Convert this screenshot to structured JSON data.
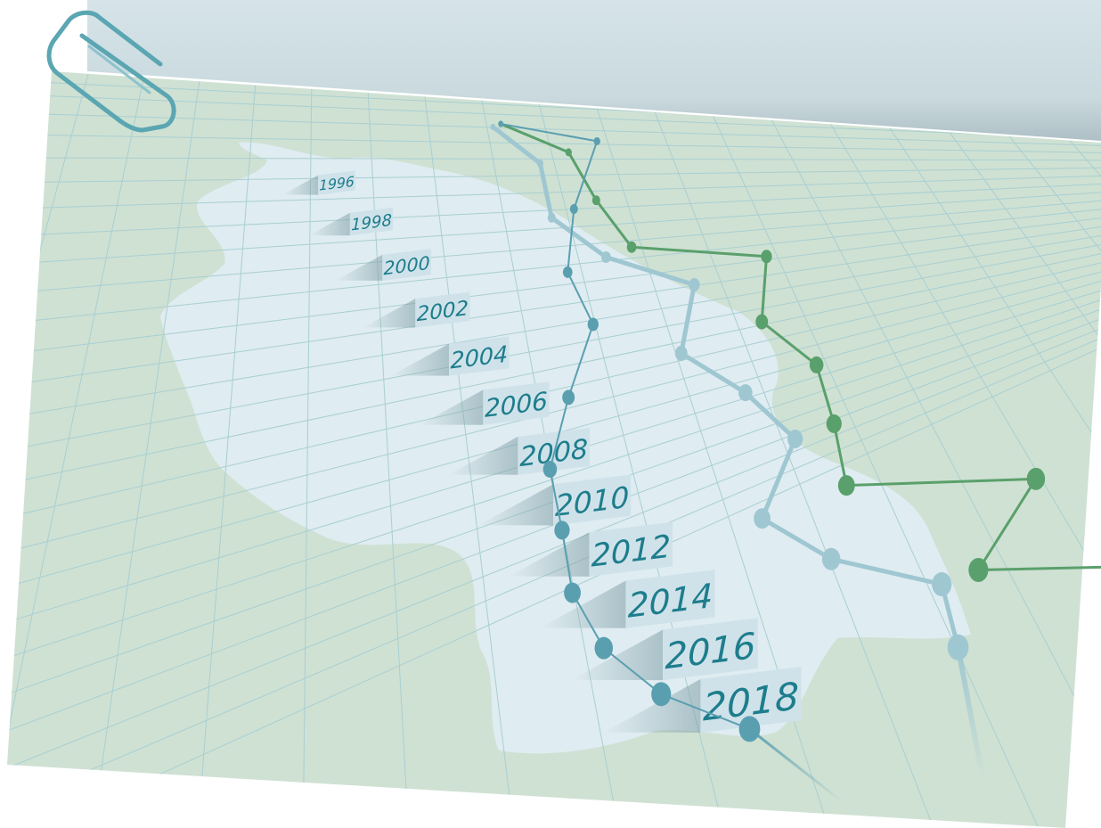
{
  "colors": {
    "background": "#ffffff",
    "sheet_top": "#d4e3e8",
    "sheet_top_shadow": "#b3c6cd",
    "ground": "#cfe1d3",
    "grid": "#a9cfd2",
    "map": "#dfecf1",
    "label_card": "#cfe2ea",
    "label_text": "#1d7d8c",
    "series_green": "#5aa06c",
    "series_teal": "#5a9fb0",
    "series_light": "#9fc7d2",
    "paperclip": "#5aa6b2"
  },
  "decor": {
    "paperclip_icon": "paperclip-icon",
    "map_shape": "country-outline"
  },
  "chart_data": {
    "type": "line",
    "categories": [
      "1996",
      "1998",
      "2000",
      "2002",
      "2004",
      "2006",
      "2008",
      "2010",
      "2012",
      "2014",
      "2016",
      "2018"
    ],
    "title": "",
    "xlabel": "",
    "ylabel": "",
    "legend": "none",
    "grid": true,
    "series": [
      {
        "values": [
          0.69,
          0.7,
          0.64,
          0.66,
          0.72,
          0.64,
          0.66,
          0.66,
          0.58,
          0.6,
          0.65,
          0.62
        ]
      },
      {
        "values": [
          0.71,
          0.76,
          0.72,
          0.7,
          0.82,
          0.74,
          0.74,
          0.7,
          0.66,
          0.78,
          0.68,
          0.78
        ]
      },
      {
        "values": [
          0.71,
          0.82,
          0.68,
          0.6,
          0.58,
          0.5,
          0.44,
          0.42,
          0.4,
          0.4,
          0.42,
          0.46
        ]
      }
    ]
  }
}
